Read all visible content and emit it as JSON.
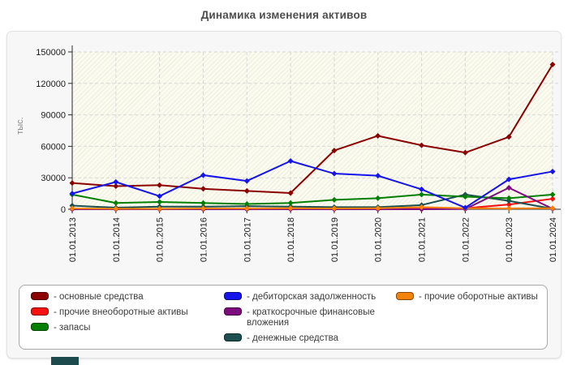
{
  "page": {
    "title": "Динамика изменения активов"
  },
  "chart_data": {
    "type": "line",
    "title": "Динамика изменения активов",
    "ylabel": "тыс.",
    "xlabel": "",
    "ylim": [
      0,
      150000
    ],
    "yticks": [
      0,
      30000,
      60000,
      90000,
      120000,
      150000
    ],
    "grid": "dashed-horizontal-and-vertical",
    "legend_position": "bottom",
    "categories": [
      "01.01.2013",
      "01.01.2014",
      "01.01.2015",
      "01.01.2016",
      "01.01.2017",
      "01.01.2018",
      "01.01.2019",
      "01.01.2020",
      "01.01.2021",
      "01.01.2022",
      "01.01.2023",
      "01.01.2024"
    ],
    "series": [
      {
        "name": "прочие внеоборотные активы",
        "color": "#f50f0f",
        "values": [
          300,
          200,
          200,
          300,
          300,
          400,
          400,
          500,
          300,
          1000,
          4500,
          10000
        ]
      },
      {
        "name": "денежные средства",
        "color": "#1c4f4f",
        "values": [
          3500,
          1500,
          2500,
          2500,
          3000,
          2500,
          2000,
          2000,
          4000,
          14000,
          8000,
          500
        ]
      },
      {
        "name": "запасы",
        "color": "#007f00",
        "values": [
          14000,
          6000,
          7000,
          6000,
          5000,
          6000,
          9000,
          10500,
          14000,
          12000,
          10500,
          14000
        ]
      },
      {
        "name": "основные средства",
        "color": "#8b0000",
        "values": [
          25000,
          22000,
          23000,
          19500,
          17500,
          15500,
          56000,
          70000,
          61000,
          54000,
          69000,
          138000
        ]
      },
      {
        "name": "краткосрочные финансовые вложения",
        "color": "#7d0c7e",
        "values": [
          0,
          0,
          0,
          0,
          0,
          0,
          0,
          0,
          0,
          200,
          20500,
          500
        ]
      },
      {
        "name": "прочие оборотные активы",
        "color": "#f5820a",
        "values": [
          800,
          500,
          500,
          800,
          800,
          1000,
          800,
          1000,
          2000,
          1000,
          800,
          1000
        ]
      },
      {
        "name": "дебиторская задолженность",
        "color": "#1414eb",
        "values": [
          15000,
          26000,
          12500,
          32500,
          27000,
          46000,
          34000,
          32000,
          19000,
          1500,
          28500,
          36000
        ]
      }
    ]
  },
  "legend": {
    "columns": [
      [
        {
          "label": "- основные средства",
          "color": "#8b0000"
        },
        {
          "label": "- прочие внеоборотные активы",
          "color": "#f50f0f"
        },
        {
          "label": "- запасы",
          "color": "#007f00"
        }
      ],
      [
        {
          "label": "- дебиторская задолженность",
          "color": "#1414eb"
        },
        {
          "label": "- краткосрочные финансовые вложения",
          "color": "#7d0c7e"
        },
        {
          "label": "- денежные средства",
          "color": "#1c4f4f"
        }
      ],
      [
        {
          "label": "- прочие оборотные активы",
          "color": "#f5820a"
        }
      ]
    ]
  },
  "misc": {
    "bottom_bar_color": "#1d4a4c"
  }
}
